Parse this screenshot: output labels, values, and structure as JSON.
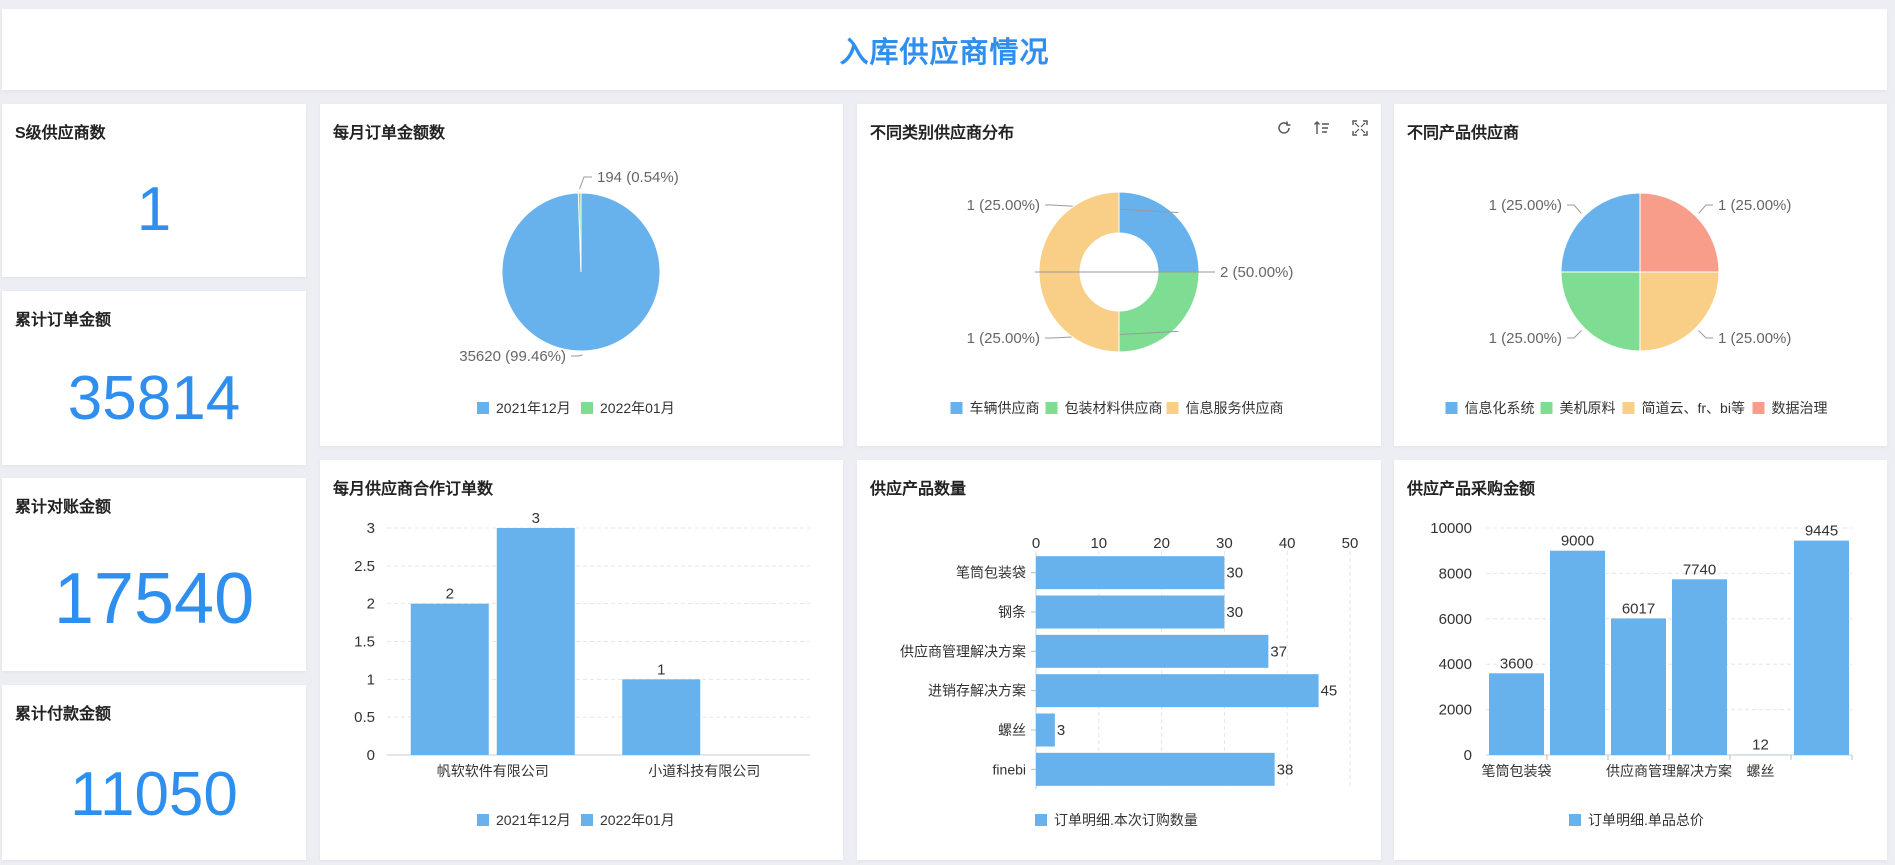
{
  "header": {
    "title": "入库供应商情况"
  },
  "kpis": [
    {
      "label": "S级供应商数",
      "value": "1"
    },
    {
      "label": "累计订单金额",
      "value": "35814"
    },
    {
      "label": "累计对账金额",
      "value": "17540"
    },
    {
      "label": "累计付款金额",
      "value": "11050"
    }
  ],
  "colors": {
    "blue": "#67b2ed",
    "green": "#7fdd93",
    "orange": "#f9cf88",
    "red": "#f99d8b",
    "accent": "#2f8fef"
  },
  "chart_data": [
    {
      "id": "monthly-order-amount",
      "type": "pie",
      "title": "每月订单金额数",
      "slices": [
        {
          "name": "2021年12月",
          "value": 35620,
          "label": "35620 (99.46%)"
        },
        {
          "name": "2022年01月",
          "value": 194,
          "label": "194 (0.54%)"
        }
      ],
      "legend": [
        "2021年12月",
        "2022年01月"
      ]
    },
    {
      "id": "supplier-category",
      "type": "pie",
      "donut": true,
      "title": "不同类别供应商分布",
      "slices": [
        {
          "name": "车辆供应商",
          "value": 1,
          "label": "1 (25.00%)"
        },
        {
          "name": "包装材料供应商",
          "value": 1,
          "label": "1 (25.00%)"
        },
        {
          "name": "信息服务供应商",
          "value": 2,
          "label": "2 (50.00%)"
        }
      ],
      "legend": [
        "车辆供应商",
        "包装材料供应商",
        "信息服务供应商"
      ]
    },
    {
      "id": "product-supplier",
      "type": "pie",
      "title": "不同产品供应商",
      "slices": [
        {
          "name": "信息化系统",
          "value": 1,
          "label": "1 (25.00%)"
        },
        {
          "name": "美机原料",
          "value": 1,
          "label": "1 (25.00%)"
        },
        {
          "name": "简道云、fr、bi等",
          "value": 1,
          "label": "1 (25.00%)"
        },
        {
          "name": "数据治理",
          "value": 1,
          "label": "1 (25.00%)"
        }
      ],
      "legend": [
        "信息化系统",
        "美机原料",
        "简道云、fr、bi等",
        "数据治理"
      ]
    },
    {
      "id": "monthly-coop-orders",
      "type": "bar",
      "title": "每月供应商合作订单数",
      "categories": [
        "帆软软件有限公司",
        "小道科技有限公司"
      ],
      "series": [
        {
          "name": "2021年12月",
          "values": [
            2,
            1
          ]
        },
        {
          "name": "2022年01月",
          "values": [
            3,
            null
          ]
        }
      ],
      "ylim": [
        0,
        3
      ],
      "yticks": [
        "0",
        "0.5",
        "1",
        "1.5",
        "2",
        "2.5",
        "3"
      ]
    },
    {
      "id": "product-quantity",
      "type": "bar",
      "orientation": "horizontal",
      "title": "供应产品数量",
      "categories": [
        "笔筒包装袋",
        "钢条",
        "供应商管理解决方案",
        "进销存解决方案",
        "螺丝",
        "finebi"
      ],
      "series": [
        {
          "name": "订单明细.本次订购数量",
          "values": [
            30,
            30,
            37,
            45,
            3,
            38
          ]
        }
      ],
      "xlim": [
        0,
        50
      ],
      "xticks": [
        "0",
        "10",
        "20",
        "30",
        "40",
        "50"
      ]
    },
    {
      "id": "purchase-amount",
      "type": "bar",
      "title": "供应产品采购金额",
      "categories": [
        "笔筒包装袋",
        "",
        "供应商管理解决方案",
        "",
        "螺丝",
        ""
      ],
      "series": [
        {
          "name": "订单明细.单品总价",
          "values": [
            3600,
            9000,
            6017,
            7740,
            12,
            9445
          ]
        }
      ],
      "ylim": [
        0,
        10000
      ],
      "yticks": [
        "0",
        "2000",
        "4000",
        "6000",
        "8000",
        "10000"
      ]
    }
  ]
}
